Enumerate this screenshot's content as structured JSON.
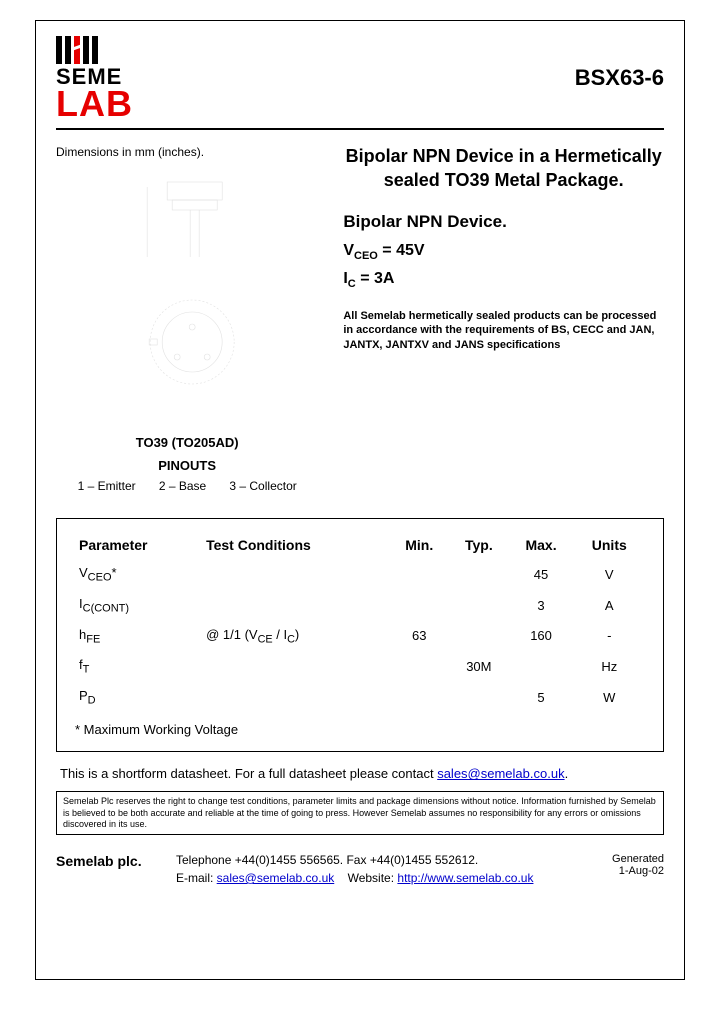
{
  "logo": {
    "top": "SEME",
    "bottom": "LAB"
  },
  "part_number": "BSX63-6",
  "dimensions_label": "Dimensions in mm (inches).",
  "package": {
    "title1": "TO39 (TO205AD)",
    "title2": "PINOUTS",
    "pins": [
      "1 – Emitter",
      "2 – Base",
      "3 – Collector"
    ]
  },
  "heading": "Bipolar NPN Device in a Hermetically sealed TO39 Metal Package.",
  "subheading": "Bipolar NPN Device.",
  "specs": {
    "vceo_label": "V",
    "vceo_sub": "CEO",
    "vceo_eq": " =  45V",
    "ic_label": "I",
    "ic_sub": "C",
    "ic_eq": " = 3A"
  },
  "compliance": "All Semelab hermetically sealed products can be processed in accordance with the requirements of BS, CECC and JAN, JANTX, JANTXV and JANS specifications",
  "table": {
    "headers": [
      "Parameter",
      "Test Conditions",
      "Min.",
      "Typ.",
      "Max.",
      "Units"
    ],
    "rows": [
      {
        "param": "V",
        "psub": "CEO",
        "pstar": "*",
        "cond": "",
        "min": "",
        "typ": "",
        "max": "45",
        "units": "V"
      },
      {
        "param": "I",
        "psub": "C(CONT)",
        "pstar": "",
        "cond": "",
        "min": "",
        "typ": "",
        "max": "3",
        "units": "A"
      },
      {
        "param": "h",
        "psub": "FE",
        "pstar": "",
        "cond": "@ 1/1 (V<sub>CE</sub> / I<sub>C</sub>)",
        "min": "63",
        "typ": "",
        "max": "160",
        "units": "-"
      },
      {
        "param": "f",
        "psub": "T",
        "pstar": "",
        "cond": "",
        "min": "",
        "typ": "30M",
        "max": "",
        "units": "Hz"
      },
      {
        "param": "P",
        "psub": "D",
        "pstar": "",
        "cond": "",
        "min": "",
        "typ": "",
        "max": "5",
        "units": "W"
      }
    ],
    "footnote": "* Maximum Working Voltage"
  },
  "shortform": {
    "text": "This is a shortform datasheet. For a full datasheet please contact ",
    "email": "sales@semelab.co.uk",
    "trail": "."
  },
  "disclaimer": "Semelab Plc reserves the right to change test conditions, parameter limits and package dimensions without notice. Information furnished by Semelab is believed to be both accurate and reliable at the time of going to press. However Semelab assumes no responsibility for any errors or omissions discovered in its use.",
  "footer": {
    "company": "Semelab plc.",
    "tel": "Telephone +44(0)1455 556565. Fax +44(0)1455 552612.",
    "email_lbl": "E-mail: ",
    "email": "sales@semelab.co.uk",
    "web_lbl": "    Website: ",
    "web": "http://www.semelab.co.uk",
    "generated_lbl": "Generated",
    "generated_date": "1-Aug-02"
  }
}
